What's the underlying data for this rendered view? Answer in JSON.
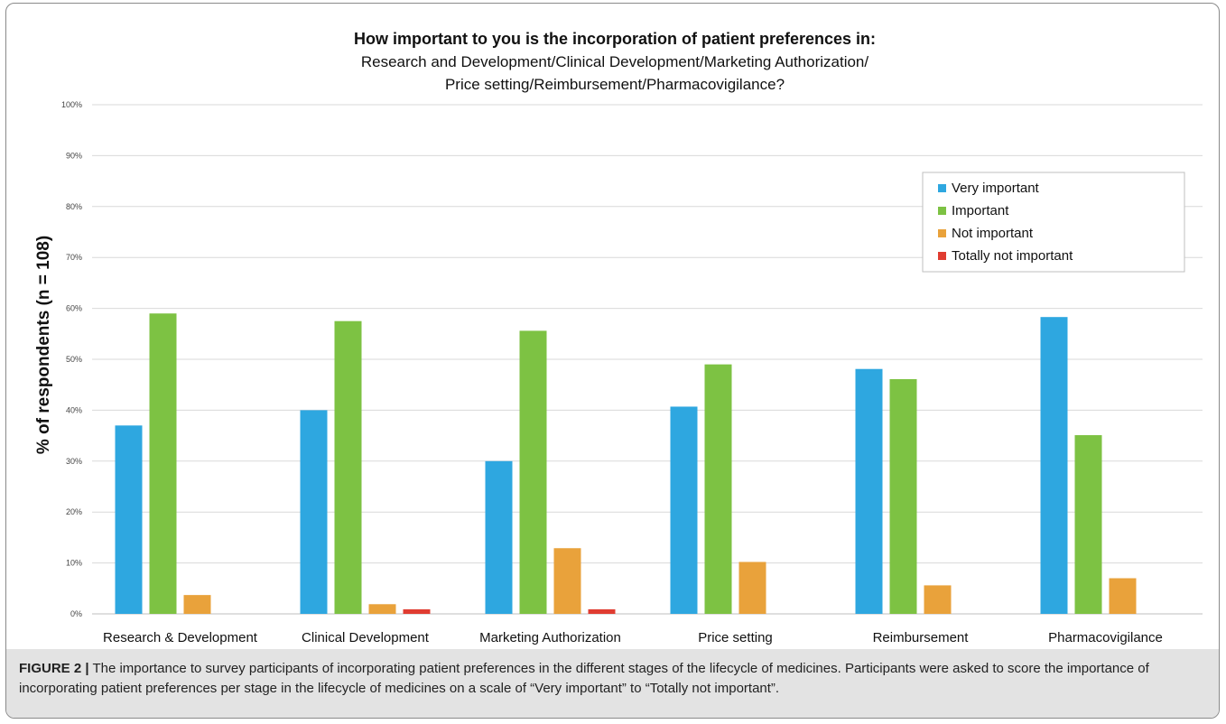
{
  "chart_data": {
    "type": "bar",
    "title": "How important to you is the incorporation of patient preferences in:",
    "subtitle_lines": [
      "Research and Development/Clinical Development/Marketing Authorization/",
      "Price setting/Reimbursement/Pharmacovigilance?"
    ],
    "ylabel": "% of respondents (n = 108)",
    "xlabel": "",
    "ylim": [
      0,
      100
    ],
    "yticks": [
      0,
      10,
      20,
      30,
      40,
      50,
      60,
      70,
      80,
      90,
      100
    ],
    "ytick_labels": [
      "0%",
      "10%",
      "20%",
      "30%",
      "40%",
      "50%",
      "60%",
      "70%",
      "80%",
      "90%",
      "100%"
    ],
    "grid": true,
    "legend_position": "top-right",
    "categories": [
      "Research & Development",
      "Clinical Development",
      "Marketing Authorization",
      "Price setting",
      "Reimbursement",
      "Pharmacovigilance"
    ],
    "series": [
      {
        "name": "Very important",
        "color": "#2ea7e0",
        "values": [
          37,
          40,
          30,
          40.7,
          48.1,
          58.3
        ]
      },
      {
        "name": "Important",
        "color": "#7dc243",
        "values": [
          59,
          57.5,
          55.6,
          49,
          46.1,
          35.1
        ]
      },
      {
        "name": "Not important",
        "color": "#e9a23b",
        "values": [
          3.7,
          1.9,
          12.9,
          10.2,
          5.6,
          7
        ]
      },
      {
        "name": "Totally not important",
        "color": "#e03c31",
        "values": [
          0,
          0.9,
          0.9,
          0,
          0,
          0
        ]
      }
    ]
  },
  "caption": {
    "label": "FIGURE 2 |",
    "text": "The importance to survey participants of incorporating patient preferences in the different stages of the lifecycle of medicines. Participants were asked to score the importance of incorporating patient preferences per stage in the lifecycle of medicines on a scale of “Very important” to “Totally not important”."
  },
  "colors": {
    "gridline": "#d9d9d9",
    "axis": "#bfbfbf",
    "legend_border": "#bfbfbf",
    "caption_background": "#e3e3e3"
  }
}
